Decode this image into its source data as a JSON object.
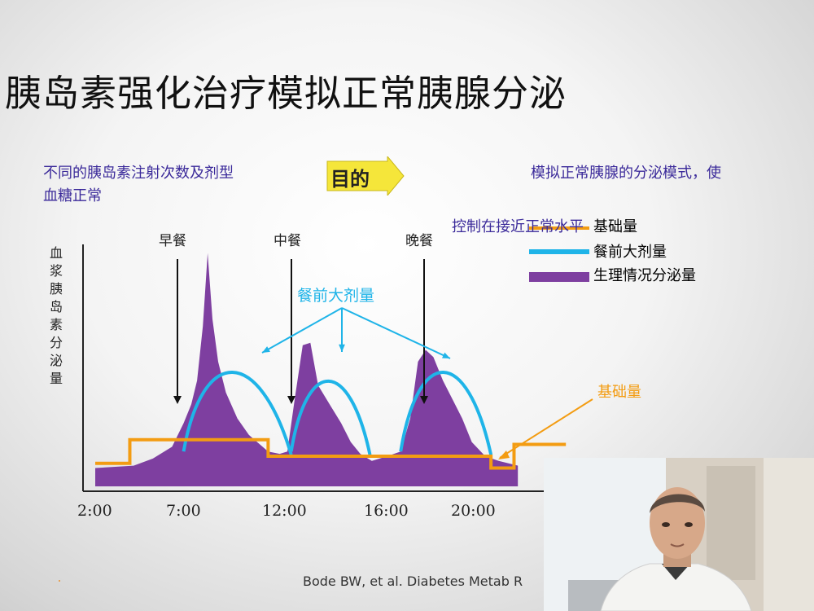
{
  "title": "胰岛素强化治疗模拟正常胰腺分泌",
  "left_text_line1": "不同的胰岛素注射次数及剂型",
  "left_text_line2": "血糖正常",
  "arrow_label": "目的",
  "right_text_line1": "模拟正常胰腺的分泌模式，使",
  "right_text_line2": "控制在接近正常水平",
  "y_axis_label": "血浆胰岛素分泌量",
  "meals": [
    "早餐",
    "中餐",
    "晚餐"
  ],
  "annotation_bolus": "餐前大剂量",
  "annotation_basal": "基础量",
  "legend": [
    {
      "label": "基础量",
      "color": "#f39c12"
    },
    {
      "label": "餐前大剂量",
      "color": "#1fb4e8"
    },
    {
      "label": "生理情况分泌量",
      "color": "#7e3fa0"
    }
  ],
  "citation": "Bode BW, et al. Diabetes Metab R",
  "colors": {
    "basal": "#f39c12",
    "bolus": "#1fb4e8",
    "physiologic": "#7e3fa0",
    "text_purple": "#3b2a9a",
    "arrow_fill": "#f5e63a"
  },
  "chart_data": {
    "type": "area",
    "x_tick_labels": [
      "2:00",
      "7:00",
      "12:00",
      "16:00",
      "20:00"
    ],
    "x_ticks_hours": [
      2,
      7,
      12,
      16,
      20
    ],
    "meal_times_hours": [
      7,
      12,
      18
    ],
    "series": [
      {
        "name": "生理情况分泌量",
        "type": "area",
        "x": [
          2,
          4,
          5,
          6,
          6.6,
          7,
          7.3,
          7.6,
          7.85,
          8.1,
          8.4,
          8.8,
          9.4,
          10,
          11,
          11.6,
          12,
          12.4,
          12.8,
          13.2,
          13.6,
          14.2,
          14.8,
          15.3,
          15.8,
          16.4,
          17.2,
          17.9,
          18.4,
          18.8,
          19.2,
          19.6,
          20.1,
          20.6,
          21.1,
          21.6,
          22.3,
          23,
          24
        ],
        "y": [
          0.5,
          0.6,
          0.9,
          1.4,
          2.4,
          3.2,
          4.2,
          6.5,
          9.6,
          6.8,
          5.0,
          3.7,
          2.6,
          1.9,
          1.2,
          1.1,
          1.2,
          3.5,
          5.7,
          5.8,
          4.0,
          3.2,
          2.4,
          1.6,
          1.1,
          0.8,
          1.0,
          1.2,
          2.6,
          5.0,
          5.5,
          5.2,
          4.2,
          3.4,
          2.6,
          1.6,
          1.0,
          0.8,
          0.6
        ]
      },
      {
        "name": "餐前大剂量",
        "type": "line",
        "peaks": [
          {
            "start": 6.6,
            "peak": 9.4,
            "end": 12.2,
            "height": 5.0
          },
          {
            "start": 12.2,
            "peak": 14.5,
            "end": 16.3,
            "height": 4.5
          },
          {
            "start": 17.9,
            "peak": 20.5,
            "end": 22.6,
            "height": 5.0
          }
        ]
      },
      {
        "name": "基础量",
        "type": "step",
        "steps": [
          {
            "from": 2,
            "to": 3.8,
            "y": 0.7
          },
          {
            "from": 3.8,
            "to": 11.0,
            "y": 1.7
          },
          {
            "from": 11.0,
            "to": 22.6,
            "y": 1.0
          },
          {
            "from": 22.6,
            "to": 23.8,
            "y": 0.5
          },
          {
            "from": 23.8,
            "to": 26.5,
            "y": 1.5
          }
        ]
      }
    ],
    "ylabel": "血浆胰岛素分泌量",
    "grid": false
  }
}
